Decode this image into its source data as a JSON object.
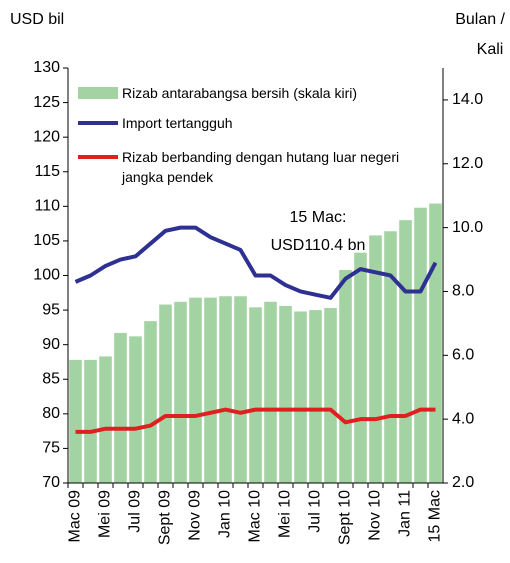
{
  "chart_data": {
    "type": "bar",
    "y_label": "USD bil",
    "y2_label": [
      "Bulan /",
      "Kali"
    ],
    "annotation": [
      "15 Mac:",
      "USD110.4 bn"
    ],
    "categories": [
      "Mac 09",
      null,
      "Mei 09",
      null,
      "Jul 09",
      null,
      "Sept 09",
      null,
      "Nov 09",
      null,
      "Jan 10",
      null,
      "Mac 10",
      null,
      "Mei 10",
      null,
      "Jul 10",
      null,
      "Sept 10",
      null,
      "Nov 10",
      null,
      "Jan 11",
      null,
      "15 Mac"
    ],
    "ylim": [
      70,
      130
    ],
    "yticks": [
      70,
      75,
      80,
      85,
      90,
      95,
      100,
      105,
      110,
      115,
      120,
      125,
      130
    ],
    "y2lim": [
      2,
      15
    ],
    "y2ticks": [
      {
        "value": 2,
        "label": "2.0"
      },
      {
        "value": 4,
        "label": "4.0"
      },
      {
        "value": 6,
        "label": "6.0"
      },
      {
        "value": 8,
        "label": "8.0"
      },
      {
        "value": 10,
        "label": "10.0"
      },
      {
        "value": 12,
        "label": "12.0"
      },
      {
        "value": 14,
        "label": "14.0"
      }
    ],
    "series": [
      {
        "name": "Rizab antarabangsa bersih (skala kiri)",
        "type": "bar",
        "color": "#a3d3a3",
        "values": [
          87.8,
          87.8,
          88.3,
          91.7,
          91.2,
          93.4,
          95.8,
          96.2,
          96.8,
          96.8,
          97.0,
          97.0,
          95.4,
          96.2,
          95.6,
          94.8,
          95.0,
          95.3,
          100.8,
          103.3,
          105.8,
          106.4,
          108.0,
          109.8,
          110.4
        ]
      },
      {
        "name": "Import tertangguh",
        "type": "line",
        "axis": "y2",
        "color": "#2e3192",
        "values": [
          8.3,
          8.5,
          8.8,
          9.0,
          9.1,
          9.5,
          9.9,
          10.0,
          10.0,
          9.7,
          9.5,
          9.3,
          8.5,
          8.5,
          8.2,
          8.0,
          7.9,
          7.8,
          8.4,
          8.7,
          8.6,
          8.5,
          8.0,
          8.0,
          8.9
        ]
      },
      {
        "name": "Rizab berbanding dengan hutang luar negeri jangka pendek",
        "type": "line",
        "axis": "y2",
        "color": "#e02020",
        "values": [
          3.6,
          3.6,
          3.7,
          3.7,
          3.7,
          3.8,
          4.1,
          4.1,
          4.1,
          4.2,
          4.3,
          4.2,
          4.3,
          4.3,
          4.3,
          4.3,
          4.3,
          4.3,
          3.9,
          4.0,
          4.0,
          4.1,
          4.1,
          4.3,
          4.3
        ]
      }
    ]
  }
}
